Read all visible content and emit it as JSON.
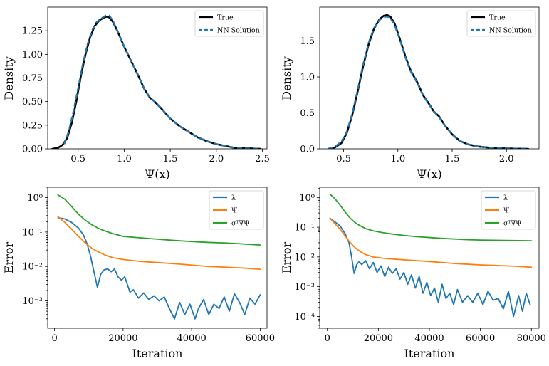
{
  "chart_data": [
    {
      "id": "top-left",
      "type": "line",
      "xlabel": "Ψ(x)",
      "ylabel": "Density",
      "xlim": [
        0.17,
        2.55
      ],
      "ylim": [
        0,
        1.5
      ],
      "x_ticks": [
        0.5,
        1.0,
        1.5,
        2.0,
        2.5
      ],
      "x_tick_labels": [
        "0.5",
        "1.0",
        "1.5",
        "2.0",
        "2.5"
      ],
      "y_ticks": [
        0.0,
        0.25,
        0.5,
        0.75,
        1.0,
        1.25
      ],
      "y_tick_labels": [
        "0.00",
        "0.25",
        "0.50",
        "0.75",
        "1.00",
        "1.25"
      ],
      "legend": "top-right",
      "series": [
        {
          "name": "True",
          "color": "#000000",
          "dash": "solid",
          "x": [
            0.22,
            0.28,
            0.33,
            0.38,
            0.43,
            0.48,
            0.53,
            0.58,
            0.63,
            0.68,
            0.73,
            0.78,
            0.81,
            0.84,
            0.88,
            0.93,
            1.0,
            1.08,
            1.15,
            1.22,
            1.28,
            1.33,
            1.4,
            1.5,
            1.6,
            1.7,
            1.8,
            1.9,
            2.0,
            2.1,
            2.2,
            2.35,
            2.48
          ],
          "y": [
            0.0,
            0.01,
            0.04,
            0.11,
            0.27,
            0.5,
            0.77,
            1.0,
            1.18,
            1.3,
            1.36,
            1.39,
            1.4,
            1.39,
            1.34,
            1.24,
            1.08,
            0.92,
            0.78,
            0.63,
            0.54,
            0.5,
            0.43,
            0.32,
            0.24,
            0.18,
            0.12,
            0.08,
            0.05,
            0.03,
            0.01,
            0.005,
            0.0
          ]
        },
        {
          "name": "NN Solution",
          "color": "#1f77b4",
          "dash": "dashed",
          "x": [
            0.35,
            0.4,
            0.45,
            0.5,
            0.55,
            0.6,
            0.65,
            0.7,
            0.75,
            0.8,
            0.84,
            0.88,
            0.93,
            1.0,
            1.08,
            1.15,
            1.22,
            1.28,
            1.33,
            1.4,
            1.5,
            1.6,
            1.7,
            1.8,
            1.9,
            2.0,
            2.1,
            2.2,
            2.35,
            2.48
          ],
          "y": [
            0.05,
            0.19,
            0.4,
            0.64,
            0.89,
            1.1,
            1.25,
            1.34,
            1.38,
            1.41,
            1.41,
            1.35,
            1.24,
            1.08,
            0.92,
            0.78,
            0.63,
            0.54,
            0.5,
            0.43,
            0.32,
            0.24,
            0.18,
            0.12,
            0.08,
            0.05,
            0.03,
            0.01,
            0.005,
            0.0
          ]
        }
      ]
    },
    {
      "id": "top-right",
      "type": "line",
      "xlabel": "Ψ(x)",
      "ylabel": "Density",
      "xlim": [
        0.28,
        2.3
      ],
      "ylim": [
        0,
        1.97
      ],
      "x_ticks": [
        0.5,
        1.0,
        1.5,
        2.0
      ],
      "x_tick_labels": [
        "0.5",
        "1.0",
        "1.5",
        "2.0"
      ],
      "y_ticks": [
        0.0,
        0.5,
        1.0,
        1.5
      ],
      "y_tick_labels": [
        "0.0",
        "0.5",
        "1.0",
        "1.5"
      ],
      "legend": "top-right",
      "series": [
        {
          "name": "True",
          "color": "#000000",
          "dash": "solid",
          "x": [
            0.36,
            0.42,
            0.48,
            0.53,
            0.58,
            0.63,
            0.68,
            0.73,
            0.78,
            0.83,
            0.87,
            0.9,
            0.93,
            0.97,
            1.02,
            1.07,
            1.12,
            1.18,
            1.23,
            1.28,
            1.33,
            1.38,
            1.43,
            1.5,
            1.57,
            1.65,
            1.75,
            1.85,
            1.95,
            2.05,
            2.2
          ],
          "y": [
            0.0,
            0.02,
            0.08,
            0.22,
            0.47,
            0.8,
            1.15,
            1.45,
            1.67,
            1.8,
            1.85,
            1.86,
            1.84,
            1.74,
            1.52,
            1.28,
            1.08,
            0.92,
            0.75,
            0.64,
            0.52,
            0.45,
            0.33,
            0.2,
            0.11,
            0.06,
            0.03,
            0.015,
            0.007,
            0.003,
            0.0
          ]
        },
        {
          "name": "NN Solution",
          "color": "#1f77b4",
          "dash": "dashed",
          "x": [
            0.36,
            0.42,
            0.48,
            0.53,
            0.58,
            0.63,
            0.68,
            0.73,
            0.78,
            0.83,
            0.87,
            0.9,
            0.93,
            0.97,
            1.02,
            1.07,
            1.12,
            1.18,
            1.23,
            1.28,
            1.33,
            1.38,
            1.43,
            1.5,
            1.57,
            1.65,
            1.75,
            1.85,
            1.95,
            2.05,
            2.2
          ],
          "y": [
            0.0,
            0.03,
            0.1,
            0.24,
            0.49,
            0.82,
            1.17,
            1.47,
            1.68,
            1.79,
            1.83,
            1.84,
            1.82,
            1.72,
            1.51,
            1.27,
            1.07,
            0.91,
            0.75,
            0.63,
            0.52,
            0.44,
            0.33,
            0.2,
            0.11,
            0.06,
            0.03,
            0.015,
            0.007,
            0.003,
            0.0
          ]
        }
      ]
    },
    {
      "id": "bottom-left",
      "type": "line",
      "yscale": "log",
      "xlabel": "Iteration",
      "ylabel": "Error",
      "xlim": [
        -2000,
        62000
      ],
      "ylim": [
        0.00016,
        2.0
      ],
      "x_ticks": [
        0,
        20000,
        40000,
        60000
      ],
      "x_tick_labels": [
        "0",
        "20000",
        "40000",
        "60000"
      ],
      "y_ticks": [
        0.001,
        0.01,
        0.1,
        1
      ],
      "y_tick_labels": [
        "10⁻³",
        "10⁻²",
        "10⁻¹",
        "10⁰"
      ],
      "legend": "top-right",
      "series": [
        {
          "name": "λ",
          "color": "#1f77b4",
          "x": [
            1000,
            3000,
            5000,
            7000,
            8500,
            9500,
            10500,
            11500,
            12500,
            13500,
            14500,
            15500,
            16500,
            17500,
            18500,
            19500,
            20500,
            22000,
            23000,
            24500,
            26000,
            27500,
            29000,
            30500,
            32000,
            33500,
            35000,
            36500,
            38000,
            39500,
            41000,
            42000,
            43500,
            45000,
            46500,
            48000,
            49500,
            51000,
            52500,
            54000,
            55500,
            57000,
            58500,
            60000
          ],
          "y": [
            0.26,
            0.24,
            0.19,
            0.13,
            0.08,
            0.045,
            0.02,
            0.007,
            0.0025,
            0.006,
            0.008,
            0.0085,
            0.007,
            0.0085,
            0.005,
            0.004,
            0.005,
            0.0018,
            0.0021,
            0.0012,
            0.0017,
            0.0011,
            0.0014,
            0.001,
            0.0013,
            0.0006,
            0.0003,
            0.0009,
            0.0004,
            0.0008,
            0.0003,
            0.0006,
            0.0011,
            0.0004,
            0.0008,
            0.0006,
            0.0013,
            0.0005,
            0.0016,
            0.0009,
            0.0004,
            0.0012,
            0.0008,
            0.0015
          ]
        },
        {
          "name": "Ψ",
          "color": "#ff7f0e",
          "x": [
            1000,
            3000,
            5000,
            7000,
            9000,
            11000,
            13000,
            15000,
            17000,
            20000,
            25000,
            30000,
            35000,
            40000,
            45000,
            50000,
            55000,
            60000
          ],
          "y": [
            0.28,
            0.19,
            0.12,
            0.075,
            0.048,
            0.033,
            0.026,
            0.021,
            0.018,
            0.016,
            0.014,
            0.013,
            0.012,
            0.011,
            0.01,
            0.0095,
            0.009,
            0.0083
          ]
        },
        {
          "name": "σᵀ∇Ψ",
          "color": "#2ca02c",
          "x": [
            1000,
            3000,
            5000,
            7000,
            9000,
            11000,
            13000,
            15000,
            17000,
            20000,
            25000,
            30000,
            35000,
            40000,
            45000,
            50000,
            55000,
            60000
          ],
          "y": [
            1.2,
            0.9,
            0.55,
            0.33,
            0.22,
            0.16,
            0.125,
            0.105,
            0.09,
            0.075,
            0.068,
            0.062,
            0.057,
            0.053,
            0.05,
            0.048,
            0.045,
            0.042
          ]
        }
      ]
    },
    {
      "id": "bottom-right",
      "type": "line",
      "yscale": "log",
      "xlabel": "Iteration",
      "ylabel": "Error",
      "xlim": [
        -3000,
        83000
      ],
      "ylim": [
        4e-05,
        2.2
      ],
      "x_ticks": [
        0,
        20000,
        40000,
        60000,
        80000
      ],
      "x_tick_labels": [
        "0",
        "20000",
        "40000",
        "60000",
        "80000"
      ],
      "y_ticks": [
        0.0001,
        0.001,
        0.01,
        0.1,
        1
      ],
      "y_tick_labels": [
        "10⁻⁴",
        "10⁻³",
        "10⁻²",
        "10⁻¹",
        "10⁰"
      ],
      "legend": "top-right",
      "series": [
        {
          "name": "λ",
          "color": "#1f77b4",
          "x": [
            1000,
            3000,
            5000,
            7000,
            8500,
            9500,
            10500,
            11500,
            12500,
            13500,
            15000,
            16500,
            18000,
            19500,
            21000,
            22500,
            24000,
            25500,
            27000,
            28500,
            30000,
            31500,
            33000,
            34500,
            36000,
            37500,
            39000,
            40500,
            42000,
            43500,
            45000,
            46500,
            48000,
            49500,
            51000,
            53000,
            55000,
            57000,
            59000,
            61000,
            63000,
            65000,
            67000,
            69000,
            71000,
            73000,
            75000,
            76500,
            78000,
            79500
          ],
          "y": [
            0.2,
            0.15,
            0.11,
            0.06,
            0.03,
            0.01,
            0.0028,
            0.0055,
            0.007,
            0.0055,
            0.0075,
            0.004,
            0.0065,
            0.003,
            0.005,
            0.0022,
            0.0045,
            0.0028,
            0.004,
            0.0018,
            0.003,
            0.0012,
            0.0025,
            0.0009,
            0.0022,
            0.0006,
            0.0014,
            0.0005,
            0.0009,
            0.0003,
            0.0012,
            0.0004,
            0.0006,
            0.00025,
            0.0008,
            0.0003,
            0.0005,
            0.0003,
            0.0006,
            0.00025,
            0.0007,
            0.00035,
            0.0004,
            0.00018,
            0.0007,
            0.0001,
            0.0005,
            0.00015,
            0.0006,
            0.00025
          ]
        },
        {
          "name": "Ψ",
          "color": "#ff7f0e",
          "x": [
            1000,
            3000,
            5000,
            7000,
            9000,
            11000,
            13000,
            15000,
            18000,
            22000,
            26000,
            30000,
            35000,
            40000,
            45000,
            50000,
            55000,
            60000,
            65000,
            70000,
            75000,
            80000
          ],
          "y": [
            0.2,
            0.13,
            0.085,
            0.05,
            0.03,
            0.02,
            0.015,
            0.012,
            0.01,
            0.009,
            0.0085,
            0.008,
            0.0075,
            0.007,
            0.0065,
            0.006,
            0.0057,
            0.0054,
            0.0052,
            0.005,
            0.0048,
            0.0045
          ]
        },
        {
          "name": "σᵀ∇Ψ",
          "color": "#2ca02c",
          "x": [
            1000,
            3000,
            5000,
            7000,
            9000,
            11000,
            13000,
            15000,
            18000,
            22000,
            26000,
            30000,
            35000,
            40000,
            45000,
            50000,
            55000,
            60000,
            65000,
            70000,
            75000,
            80000
          ],
          "y": [
            1.3,
            0.9,
            0.55,
            0.32,
            0.2,
            0.14,
            0.11,
            0.09,
            0.075,
            0.065,
            0.058,
            0.053,
            0.048,
            0.045,
            0.042,
            0.04,
            0.038,
            0.037,
            0.0365,
            0.036,
            0.0355,
            0.035
          ]
        }
      ]
    }
  ]
}
